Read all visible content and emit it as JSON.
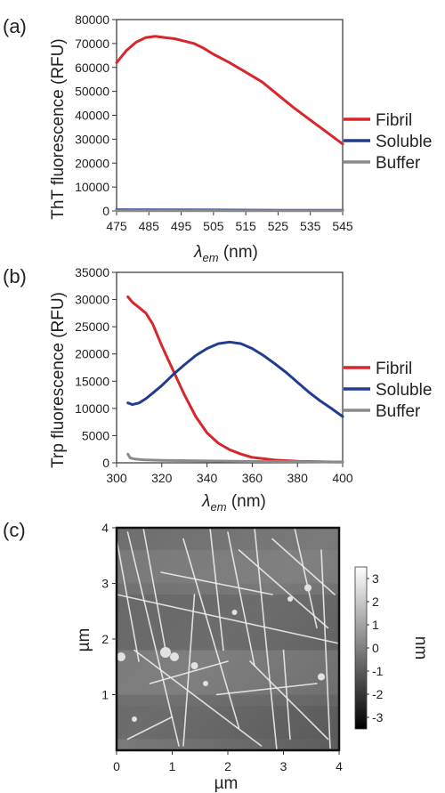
{
  "panels": [
    {
      "id": "a",
      "label": "(a)"
    },
    {
      "id": "b",
      "label": "(b)"
    },
    {
      "id": "c",
      "label": "(c)"
    }
  ],
  "chart_data": [
    {
      "type": "line",
      "panel": "(a)",
      "ylabel": "ThT fluorescence (RFU)",
      "xlabel_symbol": "λ",
      "xlabel_subscript": "em",
      "xlabel_unit": " (nm)",
      "xlim": [
        475,
        545
      ],
      "ylim": [
        0,
        80000
      ],
      "xticks": [
        475,
        485,
        495,
        505,
        515,
        525,
        535,
        545
      ],
      "yticks": [
        0,
        10000,
        20000,
        30000,
        40000,
        50000,
        60000,
        70000,
        80000
      ],
      "grid": false,
      "legend_position": "right",
      "series": [
        {
          "name": "Fibril",
          "color": "#d7262c",
          "x": [
            475,
            478,
            481,
            484,
            487,
            490,
            493,
            496,
            499,
            502,
            505,
            510,
            515,
            520,
            525,
            530,
            535,
            540,
            545
          ],
          "y": [
            62000,
            67000,
            70500,
            72500,
            73000,
            72500,
            72000,
            71000,
            70000,
            68000,
            65500,
            62000,
            58000,
            54000,
            48500,
            43000,
            38000,
            33000,
            28000
          ]
        },
        {
          "name": "Soluble",
          "color": "#223d8f",
          "x": [
            475,
            500,
            525,
            545
          ],
          "y": [
            500,
            400,
            300,
            300
          ]
        },
        {
          "name": "Buffer",
          "color": "#8a8a8a",
          "x": [
            475,
            500,
            525,
            545
          ],
          "y": [
            100,
            100,
            100,
            100
          ]
        }
      ]
    },
    {
      "type": "line",
      "panel": "(b)",
      "ylabel": "Trp fluorescence (RFU)",
      "xlabel_symbol": "λ",
      "xlabel_subscript": "em",
      "xlabel_unit": " (nm)",
      "xlim": [
        300,
        400
      ],
      "ylim": [
        0,
        35000
      ],
      "xticks": [
        300,
        320,
        340,
        360,
        380,
        400
      ],
      "yticks": [
        0,
        5000,
        10000,
        15000,
        20000,
        25000,
        30000,
        35000
      ],
      "grid": false,
      "legend_position": "right",
      "series": [
        {
          "name": "Fibril",
          "color": "#d7262c",
          "x": [
            305,
            307,
            310,
            313,
            316,
            320,
            325,
            330,
            335,
            340,
            345,
            350,
            355,
            360,
            370,
            380,
            390,
            400
          ],
          "y": [
            30500,
            29500,
            28500,
            27500,
            25500,
            21500,
            17000,
            12500,
            8500,
            5500,
            3600,
            2400,
            1600,
            1000,
            500,
            300,
            200,
            150
          ]
        },
        {
          "name": "Soluble",
          "color": "#223d8f",
          "x": [
            305,
            307,
            310,
            313,
            316,
            320,
            325,
            330,
            335,
            340,
            345,
            350,
            355,
            360,
            365,
            370,
            375,
            380,
            385,
            390,
            395,
            400
          ],
          "y": [
            11000,
            10700,
            11000,
            11800,
            12800,
            14200,
            16200,
            18000,
            19700,
            21000,
            21900,
            22200,
            21900,
            21000,
            19700,
            18200,
            16600,
            14800,
            13000,
            11400,
            10000,
            8500
          ]
        },
        {
          "name": "Buffer",
          "color": "#8a8a8a",
          "x": [
            305,
            306,
            308,
            312,
            320,
            340,
            360,
            380,
            400
          ],
          "y": [
            1600,
            900,
            700,
            550,
            450,
            350,
            250,
            200,
            150
          ]
        }
      ]
    },
    {
      "type": "heatmap",
      "panel": "(c)",
      "xlabel": "µm",
      "ylabel": "µm",
      "xlim": [
        0,
        4
      ],
      "ylim": [
        0,
        4
      ],
      "xticks": [
        0,
        1,
        2,
        3,
        4
      ],
      "yticks": [
        1,
        2,
        3,
        4
      ],
      "colorbar": {
        "label": "nm",
        "range": [
          -3.5,
          3.5
        ],
        "ticks": [
          3,
          2,
          1,
          0,
          -1,
          -2,
          -3
        ],
        "colors": [
          "#000000",
          "#ffffff"
        ]
      }
    }
  ]
}
